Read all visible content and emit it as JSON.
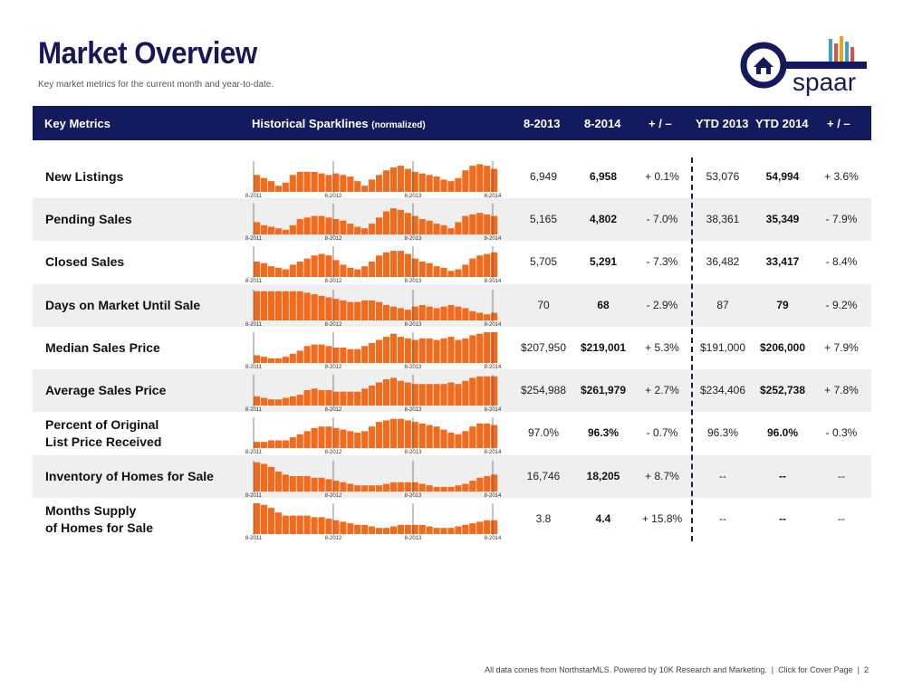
{
  "page": {
    "title": "Market Overview",
    "subtitle": "Key market metrics for the current month and year-to-date.",
    "logo_text": "spaar",
    "brand_color": "#141a5e",
    "bar_color": "#f26b1d"
  },
  "header": {
    "key_metrics": "Key Metrics",
    "sparklines": "Historical Sparklines",
    "sparklines_note": "(normalized)",
    "col1": "8-2013",
    "col2": "8-2014",
    "col3": "+ / –",
    "col4": "YTD 2013",
    "col5": "YTD 2014",
    "col6": "+ / –"
  },
  "spark_axis": [
    "8-2011",
    "8-2012",
    "8-2013",
    "8-2014"
  ],
  "rows": [
    {
      "metric": "New Listings",
      "v2013": "6,949",
      "v2014": "6,958",
      "chg": "+ 0.1%",
      "ytd2013": "53,076",
      "ytd2014": "54,994",
      "ytdchg": "+ 3.6%",
      "spark": [
        0.55,
        0.45,
        0.35,
        0.2,
        0.3,
        0.55,
        0.65,
        0.65,
        0.65,
        0.6,
        0.55,
        0.6,
        0.55,
        0.5,
        0.35,
        0.2,
        0.4,
        0.55,
        0.7,
        0.8,
        0.85,
        0.75,
        0.65,
        0.6,
        0.55,
        0.5,
        0.4,
        0.35,
        0.45,
        0.7,
        0.85,
        0.9,
        0.85,
        0.75
      ]
    },
    {
      "metric": "Pending Sales",
      "v2013": "5,165",
      "v2014": "4,802",
      "chg": "- 7.0%",
      "ytd2013": "38,361",
      "ytd2014": "35,349",
      "ytdchg": "- 7.9%",
      "spark": [
        0.4,
        0.3,
        0.25,
        0.2,
        0.15,
        0.3,
        0.5,
        0.55,
        0.6,
        0.6,
        0.55,
        0.5,
        0.45,
        0.35,
        0.25,
        0.2,
        0.35,
        0.55,
        0.75,
        0.85,
        0.8,
        0.7,
        0.6,
        0.5,
        0.45,
        0.35,
        0.3,
        0.2,
        0.4,
        0.6,
        0.65,
        0.7,
        0.65,
        0.6
      ]
    },
    {
      "metric": "Closed Sales",
      "v2013": "5,705",
      "v2014": "5,291",
      "chg": "- 7.3%",
      "ytd2013": "36,482",
      "ytd2014": "33,417",
      "ytdchg": "- 8.4%",
      "spark": [
        0.5,
        0.45,
        0.35,
        0.3,
        0.25,
        0.4,
        0.5,
        0.6,
        0.7,
        0.75,
        0.7,
        0.55,
        0.4,
        0.3,
        0.25,
        0.35,
        0.5,
        0.7,
        0.8,
        0.85,
        0.85,
        0.75,
        0.6,
        0.5,
        0.45,
        0.35,
        0.3,
        0.2,
        0.25,
        0.4,
        0.6,
        0.7,
        0.75,
        0.8
      ]
    },
    {
      "metric": "Days on Market Until Sale",
      "v2013": "70",
      "v2014": "68",
      "chg": "- 2.9%",
      "ytd2013": "87",
      "ytd2014": "79",
      "ytdchg": "- 9.2%",
      "spark": [
        0.95,
        0.95,
        0.95,
        0.95,
        0.95,
        0.95,
        0.95,
        0.9,
        0.85,
        0.8,
        0.75,
        0.7,
        0.65,
        0.6,
        0.6,
        0.65,
        0.65,
        0.6,
        0.5,
        0.45,
        0.4,
        0.35,
        0.45,
        0.5,
        0.45,
        0.4,
        0.45,
        0.5,
        0.45,
        0.4,
        0.3,
        0.25,
        0.2,
        0.25
      ]
    },
    {
      "metric": "Median Sales Price",
      "v2013": "$207,950",
      "v2014": "$219,001",
      "chg": "+ 5.3%",
      "ytd2013": "$191,000",
      "ytd2014": "$206,000",
      "ytdchg": "+ 7.9%",
      "spark": [
        0.25,
        0.2,
        0.15,
        0.15,
        0.2,
        0.3,
        0.4,
        0.55,
        0.6,
        0.6,
        0.55,
        0.5,
        0.5,
        0.45,
        0.45,
        0.55,
        0.65,
        0.75,
        0.85,
        0.95,
        0.85,
        0.8,
        0.75,
        0.8,
        0.8,
        0.75,
        0.8,
        0.85,
        0.75,
        0.8,
        0.9,
        0.95,
        1.0,
        1.0
      ]
    },
    {
      "metric": "Average Sales Price",
      "v2013": "$254,988",
      "v2014": "$261,979",
      "chg": "+ 2.7%",
      "ytd2013": "$234,406",
      "ytd2014": "$252,738",
      "ytdchg": "+ 7.8%",
      "spark": [
        0.3,
        0.25,
        0.2,
        0.2,
        0.25,
        0.3,
        0.35,
        0.5,
        0.55,
        0.5,
        0.5,
        0.45,
        0.45,
        0.45,
        0.45,
        0.55,
        0.65,
        0.75,
        0.85,
        0.9,
        0.8,
        0.75,
        0.7,
        0.7,
        0.7,
        0.7,
        0.7,
        0.75,
        0.7,
        0.8,
        0.9,
        0.95,
        0.95,
        0.95
      ]
    },
    {
      "metric": "Percent of Original\nList Price Received",
      "v2013": "97.0%",
      "v2014": "96.3%",
      "chg": "- 0.7%",
      "ytd2013": "96.3%",
      "ytd2014": "96.0%",
      "ytdchg": "- 0.3%",
      "spark": [
        0.2,
        0.2,
        0.25,
        0.25,
        0.25,
        0.35,
        0.45,
        0.55,
        0.65,
        0.7,
        0.7,
        0.65,
        0.6,
        0.55,
        0.5,
        0.55,
        0.7,
        0.85,
        0.9,
        0.95,
        0.95,
        0.9,
        0.85,
        0.8,
        0.75,
        0.7,
        0.6,
        0.5,
        0.45,
        0.55,
        0.7,
        0.8,
        0.8,
        0.75
      ]
    },
    {
      "metric": "Inventory of Homes for Sale",
      "v2013": "16,746",
      "v2014": "18,205",
      "chg": "+ 8.7%",
      "ytd2013": "--",
      "ytd2014": "--",
      "ytdchg": "--",
      "spark": [
        0.95,
        0.9,
        0.8,
        0.65,
        0.55,
        0.5,
        0.5,
        0.5,
        0.45,
        0.45,
        0.4,
        0.35,
        0.3,
        0.25,
        0.2,
        0.2,
        0.2,
        0.2,
        0.25,
        0.3,
        0.3,
        0.3,
        0.3,
        0.25,
        0.2,
        0.15,
        0.15,
        0.15,
        0.2,
        0.25,
        0.35,
        0.45,
        0.5,
        0.55
      ]
    },
    {
      "metric": "Months Supply\nof Homes for Sale",
      "v2013": "3.8",
      "v2014": "4.4",
      "chg": "+ 15.8%",
      "ytd2013": "--",
      "ytd2014": "--",
      "ytdchg": "--",
      "spark": [
        1.0,
        0.95,
        0.85,
        0.7,
        0.6,
        0.6,
        0.6,
        0.6,
        0.55,
        0.55,
        0.5,
        0.45,
        0.4,
        0.35,
        0.3,
        0.3,
        0.25,
        0.2,
        0.2,
        0.25,
        0.3,
        0.3,
        0.3,
        0.3,
        0.25,
        0.2,
        0.2,
        0.2,
        0.25,
        0.3,
        0.35,
        0.4,
        0.45,
        0.45
      ]
    }
  ],
  "footer": {
    "text": "All data comes from NorthstarMLS. Powered by 10K Research and Marketing.",
    "link": "Click for Cover Page",
    "page_number": "2"
  }
}
